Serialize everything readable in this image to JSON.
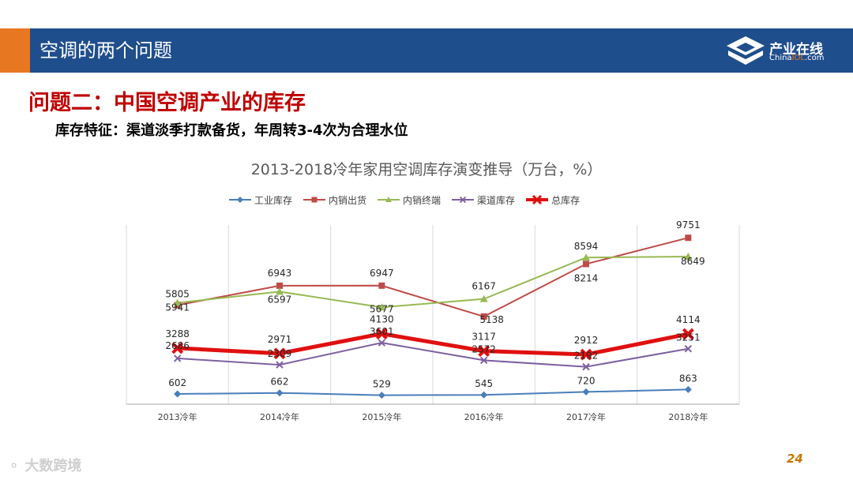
{
  "header": {
    "title": "空调的两个问题"
  },
  "logo": {
    "cn": "产业在线",
    "en_prefix": "China",
    "en_zol": "IOL",
    "en_suffix": ".com"
  },
  "section_title": "问题二：中国空调产业的库存",
  "subtitle": "库存特征：渠道淡季打款备货，年周转3-4次为合理水位",
  "page_number": "24",
  "watermark": "大数跨境",
  "colors": {
    "header": "#1f4e8c",
    "accent": "#e87722",
    "title_red": "#c00000"
  },
  "chart_data": {
    "type": "line",
    "title": "2013-2018冷年家用空调库存演变推导（万台，%）",
    "categories": [
      "2013冷年",
      "2014冷年",
      "2015冷年",
      "2016冷年",
      "2017冷年",
      "2018冷年"
    ],
    "ylim": [
      0,
      10500
    ],
    "grid": "vertical",
    "legend_position": "top",
    "series": [
      {
        "name": "工业库存",
        "color": "#4a7ebb",
        "marker": "diamond",
        "width": 2,
        "values": [
          602,
          662,
          529,
          545,
          720,
          863
        ],
        "labels": [
          "602",
          "662",
          "529",
          "545",
          "720",
          "863"
        ]
      },
      {
        "name": "内销出货",
        "color": "#be4b48",
        "marker": "square",
        "width": 2,
        "values": [
          5805,
          6943,
          6947,
          5138,
          8214,
          9751
        ],
        "labels": [
          "5805",
          "6943",
          "6947",
          "5138",
          "8214",
          "9751"
        ]
      },
      {
        "name": "内销终端",
        "color": "#98b954",
        "marker": "triangle",
        "width": 2,
        "values": [
          5941,
          6597,
          5677,
          6167,
          8594,
          8649
        ],
        "labels": [
          "5941",
          "6597",
          "5677",
          "6167",
          "8594",
          "8649"
        ]
      },
      {
        "name": "渠道库存",
        "color": "#7d60a0",
        "marker": "x",
        "width": 2,
        "values": [
          2686,
          2309,
          3601,
          2572,
          2192,
          3251
        ],
        "labels": [
          "2686",
          "2309",
          "3601",
          "2572",
          "2192",
          "3251"
        ]
      },
      {
        "name": "总库存",
        "color": "#e01010",
        "marker": "bigx",
        "width": 5,
        "values": [
          3288,
          2971,
          4130,
          3117,
          2912,
          4114
        ],
        "labels": [
          "3288",
          "2971",
          "4130",
          "3117",
          "2912",
          "4114"
        ]
      }
    ]
  }
}
